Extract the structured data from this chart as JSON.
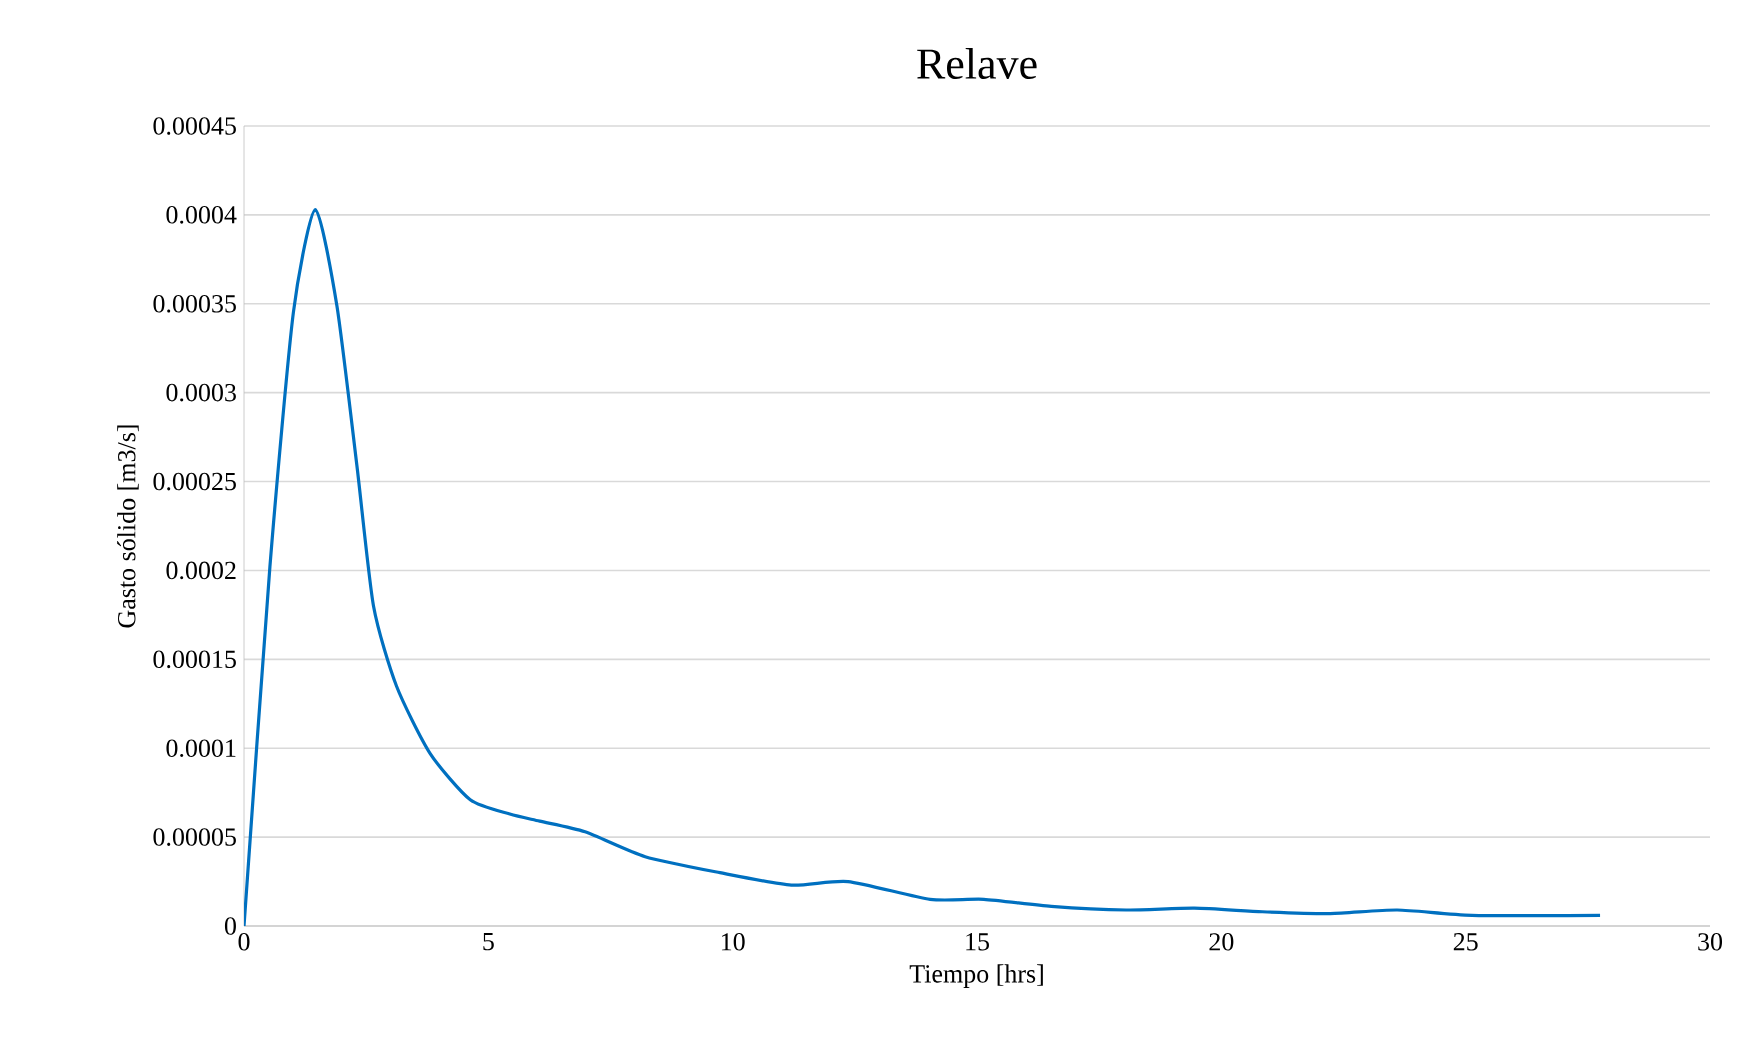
{
  "chart_data": {
    "type": "line",
    "title": "Relave",
    "xlabel": "Tiempo [hrs]",
    "ylabel": "Gasto sólido [m3/s]",
    "x": [
      0,
      0.53,
      1.01,
      1.46,
      1.9,
      2.31,
      2.65,
      3.12,
      3.81,
      4.63,
      5.44,
      6.05,
      6.98,
      8.21,
      9.74,
      11.2,
      12.36,
      14.04,
      15.14,
      16.52,
      18.05,
      19.45,
      20.84,
      22.23,
      23.6,
      25.13,
      27.75
    ],
    "series": [
      {
        "color": "#0070c0",
        "values": [
          0,
          0.000202,
          0.000345,
          0.000403,
          0.000349,
          0.000259,
          0.00018,
          0.000135,
          9.7e-05,
          7.1e-05,
          6.3e-05,
          5.9e-05,
          5.3e-05,
          3.9e-05,
          3e-05,
          2.3e-05,
          2.5e-05,
          1.5e-05,
          1.5e-05,
          1.1e-05,
          9e-06,
          1e-05,
          8e-06,
          7e-06,
          9e-06,
          6e-06,
          6e-06
        ]
      }
    ],
    "xlim": [
      0,
      30
    ],
    "xticks": [
      0,
      5,
      10,
      15,
      20,
      25,
      30
    ],
    "ylim": [
      0,
      0.00045
    ],
    "yticks": [
      {
        "value": 0,
        "label": "0"
      },
      {
        "value": 5e-05,
        "label": "0.00005"
      },
      {
        "value": 0.0001,
        "label": "0.0001"
      },
      {
        "value": 0.00015,
        "label": "0.00015"
      },
      {
        "value": 0.0002,
        "label": "0.0002"
      },
      {
        "value": 0.00025,
        "label": "0.00025"
      },
      {
        "value": 0.0003,
        "label": "0.0003"
      },
      {
        "value": 0.00035,
        "label": "0.00035"
      },
      {
        "value": 0.0004,
        "label": "0.0004"
      },
      {
        "value": 0.00045,
        "label": "0.00045"
      }
    ],
    "grid": "y",
    "marker": "none",
    "line_style": "solid"
  }
}
